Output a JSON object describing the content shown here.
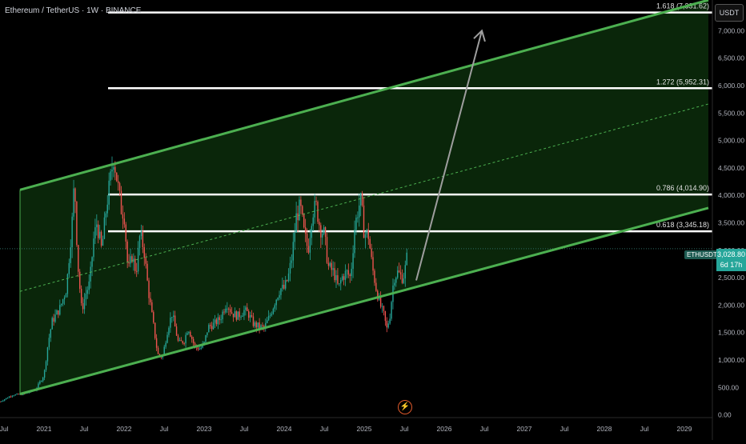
{
  "header": {
    "title": "Ethereum / TetherUS · 1W · BINANCE",
    "currency": "USDT"
  },
  "price_label": {
    "symbol": "ETHUSDT",
    "price": "3,028.80",
    "countdown": "6d 17h"
  },
  "colors": {
    "background": "#000000",
    "channel": "#4caf50",
    "channel_fill": "#0b2a0b",
    "fib_line": "#ffffff",
    "arrow": "#9e9e9e",
    "up_candle": "#26a69a",
    "down_candle": "#ef5350",
    "icon_accent": "#e05a2b"
  },
  "icons": {
    "bolt": "lightning-icon"
  },
  "chart_data": {
    "type": "candlestick",
    "title": "",
    "xlabel": "",
    "ylabel": "",
    "y_axis_side": "right",
    "y_ticks": [
      "7,000.00",
      "6,500.00",
      "6,000.00",
      "5,500.00",
      "5,000.00",
      "4,500.00",
      "4,000.00",
      "3,500.00",
      "3,000.00",
      "2,500.00",
      "2,000.00",
      "1,500.00",
      "1,000.00",
      "500.00",
      "0.00"
    ],
    "y_tick_values": [
      7000,
      6500,
      6000,
      5500,
      5000,
      4500,
      4000,
      3500,
      3000,
      2500,
      2000,
      1500,
      1000,
      500,
      0
    ],
    "ylim": [
      -50,
      7560
    ],
    "x_ticks": [
      "Jul",
      "2021",
      "Jul",
      "2022",
      "Jul",
      "2023",
      "Jul",
      "2024",
      "Jul",
      "2025",
      "Jul",
      "2026",
      "Jul",
      "2027",
      "Jul",
      "2028",
      "Jul",
      "2029"
    ],
    "x_tick_values": [
      2020.5,
      2021.0,
      2021.5,
      2022.0,
      2022.5,
      2023.0,
      2023.5,
      2024.0,
      2024.5,
      2025.0,
      2025.5,
      2026.0,
      2026.5,
      2027.0,
      2027.5,
      2028.0,
      2028.5,
      2029.0
    ],
    "xlim": [
      2020.45,
      2029.35
    ],
    "price_path": [
      [
        2020.45,
        240
      ],
      [
        2020.6,
        360
      ],
      [
        2020.75,
        380
      ],
      [
        2020.9,
        470
      ],
      [
        2021.0,
        730
      ],
      [
        2021.05,
        1300
      ],
      [
        2021.1,
        1700
      ],
      [
        2021.2,
        1950
      ],
      [
        2021.28,
        2300
      ],
      [
        2021.35,
        3500
      ],
      [
        2021.38,
        4300
      ],
      [
        2021.42,
        2800
      ],
      [
        2021.47,
        1900
      ],
      [
        2021.52,
        2200
      ],
      [
        2021.57,
        2400
      ],
      [
        2021.62,
        3200
      ],
      [
        2021.66,
        3500
      ],
      [
        2021.72,
        3000
      ],
      [
        2021.78,
        3800
      ],
      [
        2021.83,
        4300
      ],
      [
        2021.87,
        4700
      ],
      [
        2021.92,
        4200
      ],
      [
        2021.97,
        3700
      ],
      [
        2022.0,
        3700
      ],
      [
        2022.05,
        2600
      ],
      [
        2022.1,
        2900
      ],
      [
        2022.15,
        2600
      ],
      [
        2022.2,
        3300
      ],
      [
        2022.25,
        3000
      ],
      [
        2022.3,
        2300
      ],
      [
        2022.35,
        1800
      ],
      [
        2022.42,
        1100
      ],
      [
        2022.48,
        1050
      ],
      [
        2022.55,
        1600
      ],
      [
        2022.6,
        1850
      ],
      [
        2022.68,
        1300
      ],
      [
        2022.75,
        1350
      ],
      [
        2022.8,
        1600
      ],
      [
        2022.88,
        1250
      ],
      [
        2022.95,
        1200
      ],
      [
        2023.0,
        1300
      ],
      [
        2023.05,
        1600
      ],
      [
        2023.12,
        1650
      ],
      [
        2023.2,
        1750
      ],
      [
        2023.28,
        2050
      ],
      [
        2023.35,
        1850
      ],
      [
        2023.42,
        1800
      ],
      [
        2023.5,
        1900
      ],
      [
        2023.55,
        1850
      ],
      [
        2023.62,
        1650
      ],
      [
        2023.7,
        1600
      ],
      [
        2023.75,
        1580
      ],
      [
        2023.82,
        1800
      ],
      [
        2023.88,
        2050
      ],
      [
        2023.95,
        2300
      ],
      [
        2024.0,
        2300
      ],
      [
        2024.05,
        2500
      ],
      [
        2024.1,
        2900
      ],
      [
        2024.15,
        3600
      ],
      [
        2024.2,
        3800
      ],
      [
        2024.25,
        3300
      ],
      [
        2024.3,
        3000
      ],
      [
        2024.35,
        3700
      ],
      [
        2024.4,
        3800
      ],
      [
        2024.45,
        3400
      ],
      [
        2024.5,
        3300
      ],
      [
        2024.55,
        2700
      ],
      [
        2024.62,
        2600
      ],
      [
        2024.68,
        2300
      ],
      [
        2024.72,
        2500
      ],
      [
        2024.78,
        2600
      ],
      [
        2024.83,
        2500
      ],
      [
        2024.88,
        3400
      ],
      [
        2024.93,
        3800
      ],
      [
        2024.96,
        3900
      ],
      [
        2025.0,
        3300
      ],
      [
        2025.05,
        3300
      ],
      [
        2025.1,
        2700
      ],
      [
        2025.15,
        2300
      ],
      [
        2025.2,
        2000
      ],
      [
        2025.25,
        1800
      ],
      [
        2025.28,
        1550
      ],
      [
        2025.32,
        1800
      ],
      [
        2025.37,
        2500
      ],
      [
        2025.42,
        2600
      ],
      [
        2025.47,
        2500
      ],
      [
        2025.5,
        2550
      ],
      [
        2025.55,
        3028.8
      ]
    ],
    "channel": {
      "upper": {
        "x": [
          2020.7,
          2029.3
        ],
        "y": [
          4100,
          7560
        ]
      },
      "lower": {
        "x": [
          2020.7,
          2029.3
        ],
        "y": [
          380,
          3770
        ]
      },
      "midline": {
        "x": [
          2020.7,
          2029.3
        ],
        "y": [
          2250,
          5665
        ]
      }
    },
    "fib_levels": [
      {
        "label": "1.618 (7,331.62)",
        "value": 7331.62
      },
      {
        "label": "1.272 (5,952.31)",
        "value": 5952.31
      },
      {
        "label": "0.786 (4,014.90)",
        "value": 4014.9
      },
      {
        "label": "0.618 (3,345.18)",
        "value": 3345.18
      }
    ],
    "fib_x_start": 2021.8,
    "current_price": 3028.8,
    "projection_arrow": {
      "from": [
        2025.65,
        2450
      ],
      "to": [
        2026.47,
        7000
      ]
    }
  }
}
